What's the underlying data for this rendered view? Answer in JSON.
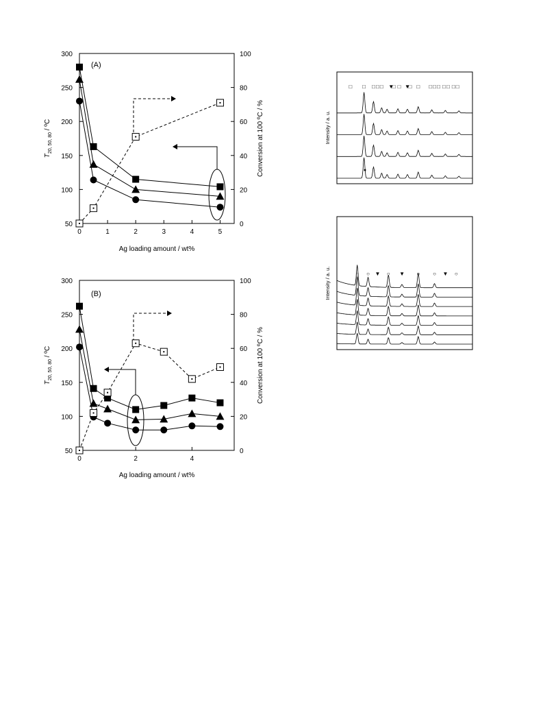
{
  "chart_data": [
    {
      "type": "line",
      "panel_label": "(A)",
      "xlabel": "Ag loading amount / wt%",
      "ylabel_left": "T20, 50, 80 / ºC",
      "ylabel_left_main": "T",
      "ylabel_left_sub": "20, 50, 80",
      "ylabel_left_unit": " / ºC",
      "ylabel_right": "Conversion at 100 ºC / %",
      "xlim": [
        0,
        5.5
      ],
      "ylim_left": [
        50,
        300
      ],
      "ylim_right": [
        0,
        100
      ],
      "xticks": [
        "0",
        "1",
        "2",
        "3",
        "4",
        "5"
      ],
      "xtick_values": [
        0,
        1,
        2,
        3,
        4,
        5
      ],
      "yticks_left": [
        "50",
        "100",
        "150",
        "200",
        "250",
        "300"
      ],
      "yticks_right": [
        "0",
        "20",
        "40",
        "60",
        "80",
        "100"
      ],
      "series": [
        {
          "marker": "square",
          "axis": "left",
          "x": [
            0,
            0.5,
            2,
            5
          ],
          "y": [
            280,
            163,
            115,
            104
          ]
        },
        {
          "marker": "triangle",
          "axis": "left",
          "x": [
            0,
            0.5,
            2,
            5
          ],
          "y": [
            262,
            137,
            100,
            90
          ]
        },
        {
          "marker": "circle",
          "axis": "left",
          "x": [
            0,
            0.5,
            2,
            5
          ],
          "y": [
            230,
            114,
            85,
            74
          ]
        },
        {
          "marker": "open-square",
          "axis": "right",
          "style": "dashed",
          "x": [
            0,
            0.5,
            2,
            5
          ],
          "y": [
            0,
            9,
            51,
            71
          ]
        }
      ]
    },
    {
      "type": "line",
      "panel_label": "(B)",
      "xlabel": "Ag loading amount / wt%",
      "ylabel_left": "T20, 50, 80 / ºC",
      "ylabel_left_main": "T",
      "ylabel_left_sub": "20, 50, 80",
      "ylabel_left_unit": " / ºC",
      "ylabel_right": "Conversion at 100 ºC / %",
      "xlim": [
        0,
        5.5
      ],
      "ylim_left": [
        50,
        300
      ],
      "ylim_right": [
        0,
        100
      ],
      "xticks": [
        "0",
        "2",
        "4"
      ],
      "xtick_values": [
        0,
        2,
        4
      ],
      "yticks_left": [
        "50",
        "100",
        "150",
        "200",
        "250",
        "300"
      ],
      "yticks_right": [
        "0",
        "20",
        "40",
        "60",
        "80",
        "100"
      ],
      "series": [
        {
          "marker": "square",
          "axis": "left",
          "x": [
            0,
            0.5,
            1,
            2,
            3,
            4,
            5
          ],
          "y": [
            262,
            141,
            127,
            110,
            116,
            127,
            120
          ]
        },
        {
          "marker": "triangle",
          "axis": "left",
          "x": [
            0,
            0.5,
            1,
            2,
            3,
            4,
            5
          ],
          "y": [
            228,
            119,
            111,
            95,
            96,
            104,
            100
          ]
        },
        {
          "marker": "circle",
          "axis": "left",
          "x": [
            0,
            0.5,
            1,
            2,
            3,
            4,
            5
          ],
          "y": [
            202,
            99,
            90,
            80,
            80,
            86,
            85
          ]
        },
        {
          "marker": "open-square",
          "axis": "right",
          "style": "dashed",
          "x": [
            0,
            0.5,
            1,
            2,
            3,
            4,
            5
          ],
          "y": [
            0,
            22,
            34,
            63,
            58,
            42,
            49
          ]
        }
      ]
    },
    {
      "type": "line",
      "ylabel": "Intensity / a. u.",
      "trace_count": 4,
      "peaks": [
        {
          "x": 0.2,
          "h": 1.0
        },
        {
          "x": 0.27,
          "h": 0.55
        },
        {
          "x": 0.33,
          "h": 0.25
        },
        {
          "x": 0.37,
          "h": 0.18
        },
        {
          "x": 0.45,
          "h": 0.2
        },
        {
          "x": 0.52,
          "h": 0.18
        },
        {
          "x": 0.6,
          "h": 0.3
        },
        {
          "x": 0.7,
          "h": 0.15
        },
        {
          "x": 0.8,
          "h": 0.12
        },
        {
          "x": 0.9,
          "h": 0.1
        }
      ],
      "markers": [
        {
          "symbol": "□",
          "x": 0.1
        },
        {
          "symbol": "□",
          "x": 0.2
        },
        {
          "symbol": "□",
          "x": 0.27
        },
        {
          "symbol": "□",
          "x": 0.3
        },
        {
          "symbol": "□",
          "x": 0.33
        },
        {
          "symbol": "▼",
          "x": 0.4
        },
        {
          "symbol": "□",
          "x": 0.42
        },
        {
          "symbol": "□",
          "x": 0.46
        },
        {
          "symbol": "▼",
          "x": 0.52
        },
        {
          "symbol": "□",
          "x": 0.54
        },
        {
          "symbol": "□",
          "x": 0.6
        },
        {
          "symbol": "□",
          "x": 0.69
        },
        {
          "symbol": "□",
          "x": 0.72
        },
        {
          "symbol": "□",
          "x": 0.75
        },
        {
          "symbol": "□",
          "x": 0.79
        },
        {
          "symbol": "□",
          "x": 0.82
        },
        {
          "symbol": "□",
          "x": 0.86
        },
        {
          "symbol": "□",
          "x": 0.89
        }
      ]
    },
    {
      "type": "line",
      "ylabel": "Intensity / a. u.",
      "trace_count": 7,
      "peaks": [
        {
          "x": 0.15,
          "h": 1.0
        },
        {
          "x": 0.23,
          "h": 0.45
        },
        {
          "x": 0.38,
          "h": 0.6
        },
        {
          "x": 0.48,
          "h": 0.15
        },
        {
          "x": 0.6,
          "h": 0.7
        },
        {
          "x": 0.72,
          "h": 0.2
        }
      ],
      "markers": [
        {
          "symbol": "○",
          "x": 0.15
        },
        {
          "symbol": "○",
          "x": 0.23
        },
        {
          "symbol": "▼",
          "x": 0.3
        },
        {
          "symbol": "○",
          "x": 0.38
        },
        {
          "symbol": "▼",
          "x": 0.48
        },
        {
          "symbol": "○",
          "x": 0.6
        },
        {
          "symbol": "○",
          "x": 0.72
        },
        {
          "symbol": "▼",
          "x": 0.8
        },
        {
          "symbol": "○",
          "x": 0.88
        }
      ]
    }
  ]
}
